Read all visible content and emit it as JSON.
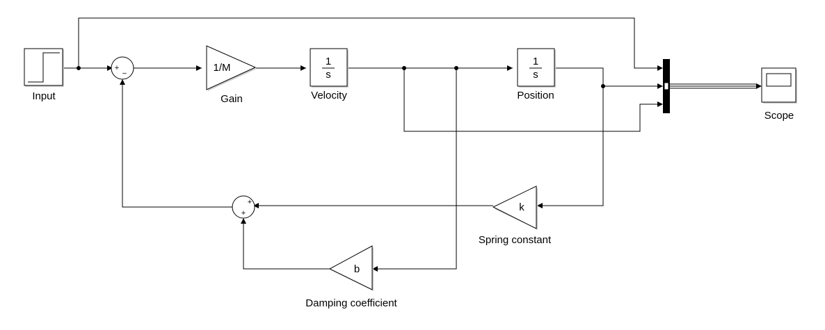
{
  "diagram": {
    "blocks": {
      "input": {
        "label": "Input"
      },
      "gain": {
        "label": "Gain",
        "text": "1/M"
      },
      "velocity": {
        "label": "Velocity",
        "numerator": "1",
        "denominator": "s"
      },
      "position": {
        "label": "Position",
        "numerator": "1",
        "denominator": "s"
      },
      "scope": {
        "label": "Scope"
      },
      "spring": {
        "label": "Spring constant",
        "text": "k"
      },
      "damping": {
        "label": "Damping coefficient",
        "text": "b"
      },
      "sum_main": {
        "signs": [
          "+",
          "−"
        ]
      },
      "sum_feedback": {
        "signs": [
          "+",
          "+"
        ]
      }
    }
  },
  "colors": {
    "line": "#000000",
    "background": "#ffffff",
    "block_fill": "#ffffff",
    "mux_fill": "#000000"
  }
}
